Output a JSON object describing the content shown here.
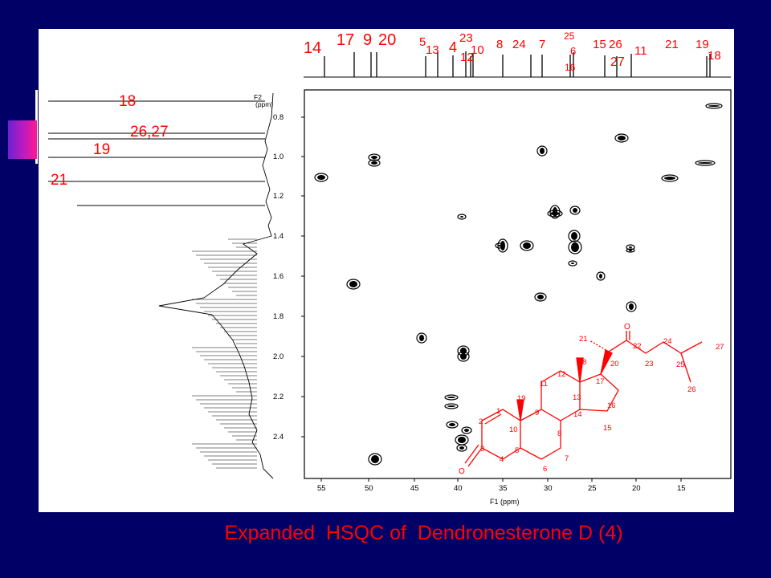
{
  "caption": "Expanded  HSQC of  Dendronesterone D (4)",
  "colors": {
    "background": "#000066",
    "annotation": "#ff0000",
    "spectrum": "#000000",
    "figure_bg": "#ffffff"
  },
  "carbon_labels": [
    "14",
    "17",
    "9",
    "20",
    "5",
    "13",
    "4",
    "23",
    "12",
    "10",
    "8",
    "24",
    "7",
    "25",
    "6",
    "16",
    "15",
    "26",
    "27",
    "11",
    "21",
    "19",
    "18"
  ],
  "proton_labels": [
    "18",
    "26,27",
    "19",
    "21"
  ],
  "f2_axis": {
    "title": "F2\n(ppm)",
    "ticks": [
      "0.8",
      "1.0",
      "1.2",
      "1.4",
      "1.6",
      "1.8",
      "2.0",
      "2.2",
      "2.4"
    ]
  },
  "f1_axis": {
    "title": "F1 (ppm)",
    "ticks": [
      "55",
      "50",
      "45",
      "40",
      "35",
      "30",
      "25",
      "20",
      "15"
    ]
  },
  "structure": {
    "atom_numbers": [
      "1",
      "2",
      "3",
      "4",
      "5",
      "6",
      "7",
      "8",
      "9",
      "10",
      "11",
      "12",
      "13",
      "14",
      "15",
      "16",
      "17",
      "18",
      "19",
      "20",
      "21",
      "22",
      "23",
      "24",
      "25",
      "26",
      "27"
    ],
    "heteroatoms": [
      "O",
      "O"
    ]
  }
}
